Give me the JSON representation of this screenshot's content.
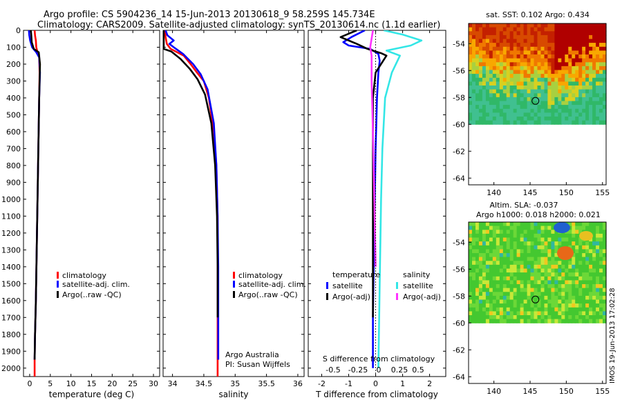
{
  "header": {
    "line1": "Argo profile: CS 5904236_14 15-Jun-2013 20130618_9 58.259S 145.734E",
    "line2": "Climatology: CARS2009. Satellite-adjusted climatology: synTS_20130614.nc (1.1d earlier)"
  },
  "footer": {
    "credit": "Argo Australia",
    "pi": "PI: Susan Wijffels",
    "stamp": "IMOS 19-Jun-2013 17:02:28"
  },
  "colors": {
    "climatology": "#ff0000",
    "satellite": "#0000ff",
    "argo": "#000000",
    "sal_satellite": "#33e6e6",
    "sal_argo": "#ff33ff"
  },
  "chart_data": [
    {
      "type": "line",
      "panel": "temperature",
      "xlabel": "temperature (deg C)",
      "ylabel": "",
      "xlim": [
        -1.5,
        31.5
      ],
      "ylim": [
        2050,
        0
      ],
      "xticks": [
        0,
        5,
        10,
        15,
        20,
        25,
        30
      ],
      "yticks": [
        0,
        100,
        200,
        300,
        400,
        500,
        600,
        700,
        800,
        900,
        1000,
        1100,
        1200,
        1300,
        1400,
        1500,
        1600,
        1700,
        1800,
        1900,
        2000
      ],
      "legend": [
        "climatology",
        "satellite-adj. clim.",
        "Argo(..raw -QC)"
      ],
      "series": [
        {
          "name": "climatology",
          "color": "#ff0000",
          "x": [
            1.2,
            1.3,
            1.5,
            1.6,
            1.9,
            2.3,
            2.4,
            2.3,
            2.1,
            1.9,
            1.7,
            1.5,
            1.3,
            1.2,
            1.2,
            1.2
          ],
          "y": [
            0,
            30,
            60,
            100,
            130,
            160,
            250,
            400,
            700,
            1000,
            1300,
            1600,
            1800,
            1950,
            2000,
            2050
          ]
        },
        {
          "name": "satellite-adj. clim.",
          "color": "#0000ff",
          "x": [
            -0.2,
            -0.1,
            0.1,
            0.6,
            1.6,
            2.3,
            2.5,
            2.3,
            2.1,
            1.9,
            1.7,
            1.5,
            1.3,
            1.2
          ],
          "y": [
            0,
            30,
            60,
            100,
            130,
            160,
            250,
            400,
            700,
            1000,
            1300,
            1600,
            1800,
            1950
          ]
        },
        {
          "name": "Argo(..raw -QC)",
          "color": "#000000",
          "x": [
            0.3,
            0.4,
            0.5,
            1.0,
            2.2,
            2.5,
            2.3,
            2.1,
            1.9,
            1.7,
            1.5,
            1.3,
            1.2
          ],
          "y": [
            0,
            30,
            70,
            110,
            130,
            200,
            400,
            700,
            1000,
            1300,
            1600,
            1800,
            1950
          ]
        }
      ]
    },
    {
      "type": "line",
      "panel": "salinity",
      "xlabel": "salinity",
      "ylabel": "",
      "xlim": [
        33.85,
        36.1
      ],
      "ylim": [
        2050,
        0
      ],
      "xticks": [
        34,
        34.5,
        35,
        35.5,
        36
      ],
      "legend": [
        "climatology",
        "satellite-adj. clim.",
        "Argo(..raw -QC)"
      ],
      "series": [
        {
          "name": "climatology",
          "color": "#ff0000",
          "x": [
            33.88,
            33.89,
            33.91,
            33.97,
            34.18,
            34.29,
            34.39,
            34.5,
            34.58,
            34.66,
            34.7,
            34.72,
            34.72,
            34.72,
            34.72,
            34.72
          ],
          "y": [
            0,
            40,
            80,
            110,
            150,
            200,
            250,
            300,
            400,
            600,
            800,
            1100,
            1400,
            1700,
            1900,
            2050
          ]
        },
        {
          "name": "satellite-adj. clim.",
          "color": "#0000ff",
          "x": [
            33.89,
            33.92,
            34.02,
            33.95,
            34.02,
            34.17,
            34.33,
            34.45,
            34.56,
            34.66,
            34.7,
            34.72,
            34.73,
            34.73,
            34.73,
            34.73
          ],
          "y": [
            0,
            30,
            60,
            80,
            100,
            140,
            200,
            260,
            350,
            550,
            800,
            1100,
            1400,
            1700,
            1900,
            1950
          ]
        },
        {
          "name": "Argo(..raw -QC)",
          "color": "#000000",
          "x": [
            33.86,
            33.86,
            33.98,
            34.13,
            34.28,
            34.4,
            34.52,
            34.62,
            34.68,
            34.71,
            34.72,
            34.72
          ],
          "y": [
            0,
            110,
            125,
            170,
            230,
            290,
            380,
            550,
            800,
            1100,
            1400,
            1700
          ]
        }
      ]
    },
    {
      "type": "line",
      "panel": "differences",
      "title": "S difference from climatology",
      "xlabel": "T difference from climatology",
      "ylabel": "",
      "xlim": [
        -2.5,
        2.6
      ],
      "ylim": [
        2050,
        0
      ],
      "xticks": [
        -2,
        -1,
        0,
        1,
        2
      ],
      "secondary_xticks": [
        "-0.5",
        "-0.25",
        "0",
        "0.25",
        "0.5"
      ],
      "legend": {
        "temperature_header": "temperature",
        "salinity_header": "salinity",
        "temperature": [
          "satellite",
          "Argo(-adj)"
        ],
        "salinity": [
          "satellite",
          "Argo(-adj)"
        ]
      },
      "series": [
        {
          "name": "temperature satellite",
          "color": "#0000ff",
          "x": [
            -0.4,
            -0.9,
            -1.2,
            -1.0,
            -0.2,
            0.1,
            0.15,
            0.1,
            0.05,
            0,
            -0.05,
            -0.1,
            -0.1
          ],
          "y": [
            0,
            40,
            70,
            90,
            110,
            140,
            180,
            250,
            400,
            700,
            1200,
            1700,
            2000
          ]
        },
        {
          "name": "temperature Argo(-adj)",
          "color": "#000000",
          "x": [
            -0.7,
            -1.3,
            -0.7,
            -0.3,
            0.2,
            0.4,
            0.0,
            -0.1,
            -0.1,
            -0.1,
            -0.1
          ],
          "y": [
            0,
            40,
            80,
            110,
            135,
            150,
            250,
            400,
            700,
            1200,
            1700
          ]
        },
        {
          "name": "salinity satellite",
          "color": "#33e6e6",
          "x": [
            0.3,
            1.0,
            1.7,
            1.3,
            0.4,
            0.9,
            0.6,
            0.35,
            0.25,
            0.2,
            0.15,
            0.1
          ],
          "y": [
            0,
            25,
            60,
            90,
            120,
            150,
            250,
            400,
            700,
            1000,
            1500,
            2000
          ]
        },
        {
          "name": "salinity Argo(-adj)",
          "color": "#ff33ff",
          "x": [
            -0.1,
            -0.2,
            -0.15,
            -0.15,
            -0.1,
            -0.05,
            0.0
          ],
          "y": [
            0,
            100,
            150,
            300,
            600,
            1000,
            1400
          ]
        }
      ]
    },
    {
      "type": "heatmap",
      "panel": "sst_map",
      "title": "sat. SST: 0.102 Argo: 0.434",
      "xticks": [
        140,
        145,
        150,
        155
      ],
      "yticks": [
        -54,
        -56,
        -58,
        -60,
        -62,
        -64
      ],
      "xlim": [
        136.5,
        155.5
      ],
      "ylim": [
        -64.5,
        -52.5
      ],
      "data_ylim_bottom": -60,
      "marker": {
        "lon": 145.734,
        "lat": -58.259
      }
    },
    {
      "type": "heatmap",
      "panel": "sla_map",
      "title": "Altim. SLA: -0.037",
      "subtitle": "Argo h1000: 0.018 h2000: 0.021",
      "xticks": [
        140,
        145,
        150,
        155
      ],
      "yticks": [
        -54,
        -56,
        -58,
        -60,
        -62,
        -64
      ],
      "xlim": [
        136.5,
        155.5
      ],
      "ylim": [
        -64.5,
        -52.5
      ],
      "data_ylim_bottom": -60,
      "marker": {
        "lon": 145.734,
        "lat": -58.259
      }
    }
  ]
}
